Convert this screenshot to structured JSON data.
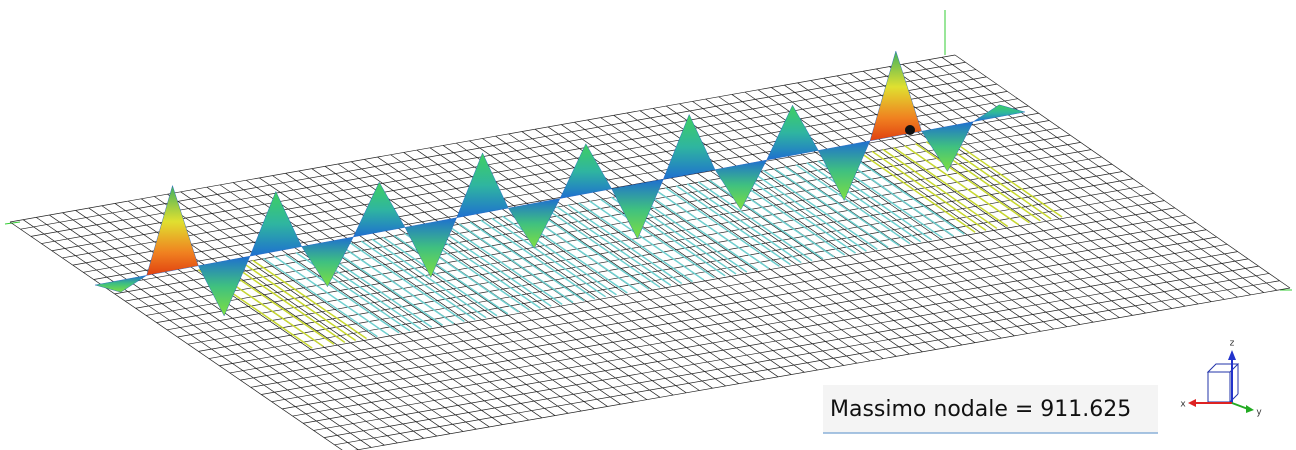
{
  "viewport": {
    "result_label": "Massimo nodale = 911.625",
    "triad": {
      "x": "x",
      "y": "y",
      "z": "z"
    }
  }
}
